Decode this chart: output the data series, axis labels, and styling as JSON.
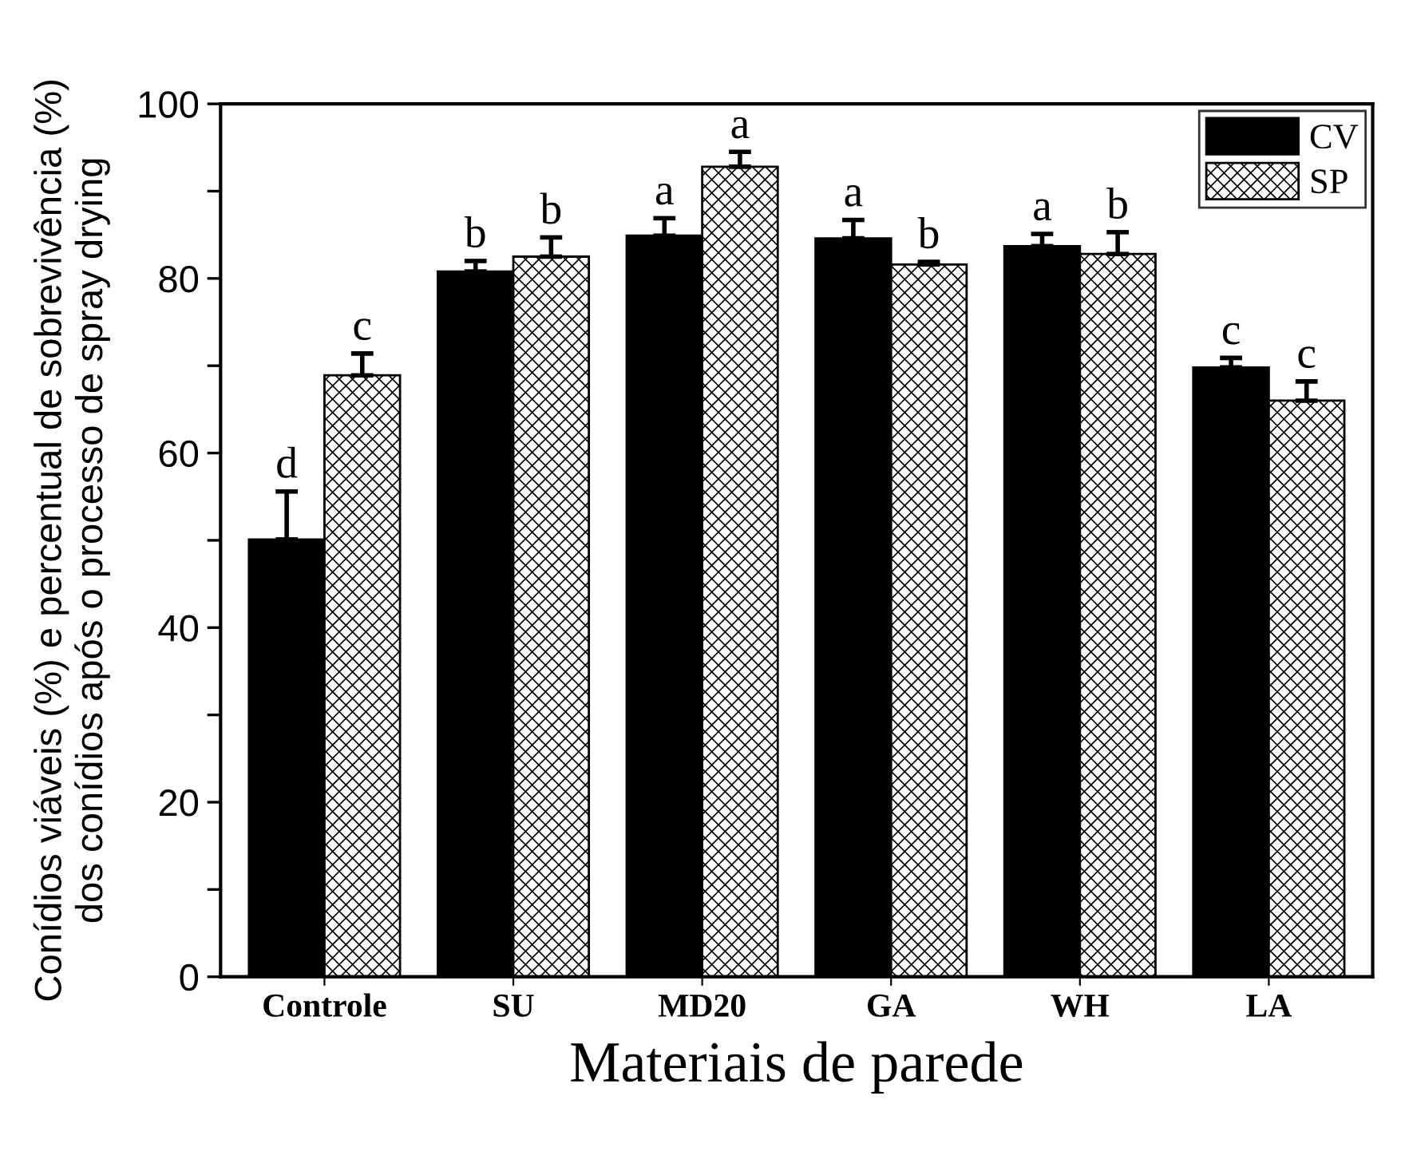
{
  "chart_data": {
    "type": "bar",
    "xlabel": "Materiais de parede",
    "ylabel": "Conídios viáveis (%) e percentual de sobrevivência (%)\ndos conídios após o processo de spray drying",
    "categories": [
      "Controle",
      "SU",
      "MD20",
      "GA",
      "WH",
      "LA"
    ],
    "series": [
      {
        "name": "CV",
        "color": "#000000",
        "values": [
          50.1,
          80.8,
          84.9,
          84.6,
          83.7,
          69.8
        ],
        "errors": [
          5.5,
          1.2,
          2.0,
          2.1,
          1.4,
          1.1
        ],
        "value_labels": [
          "d",
          "b",
          "a",
          "a",
          "a",
          "c"
        ]
      },
      {
        "name": "SP",
        "color": "#000000",
        "values": [
          68.9,
          82.5,
          92.8,
          81.6,
          82.8,
          66.0
        ],
        "errors": [
          2.5,
          2.2,
          1.7,
          0.3,
          2.5,
          2.2
        ],
        "value_labels": [
          "c",
          "b",
          "a",
          "b",
          "b",
          "c"
        ]
      }
    ],
    "ylim": [
      0,
      100
    ],
    "yticks": [
      0,
      {
        "value": 10,
        "label": null
      },
      20,
      {
        "value": 30,
        "label": null
      },
      40,
      {
        "value": 50,
        "label": null
      },
      60,
      {
        "value": 70,
        "label": null
      },
      80,
      {
        "value": 90,
        "label": null
      },
      100
    ],
    "grid": false,
    "legend": "top right"
  }
}
